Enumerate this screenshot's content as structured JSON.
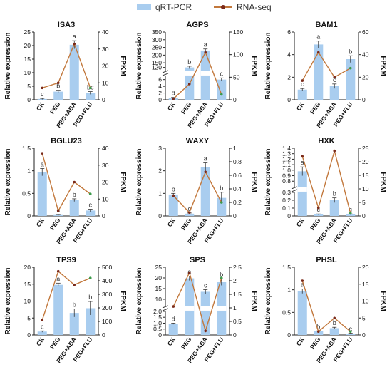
{
  "legend": {
    "bar_label": "qRT-PCR",
    "line_label": "RNA-seq"
  },
  "colors": {
    "bar": "#a9cdef",
    "line": "#c2783c",
    "point": "#7a2a1a",
    "flu_point": "#3c9a4a",
    "letter": "#333333"
  },
  "chart_data": [
    {
      "type": "bar",
      "title": "ISA3",
      "categories": [
        "CK",
        "PEG",
        "PEG+ABA",
        "PEG+FLU"
      ],
      "ylabel": "Relative expression",
      "y2label": "FPKM",
      "yticks": [
        0,
        5,
        10,
        15,
        20,
        25
      ],
      "ylim": [
        0,
        25
      ],
      "y2ticks": [
        0,
        10,
        20,
        30,
        40
      ],
      "y2lim": [
        0,
        40
      ],
      "values": [
        0.3,
        3.0,
        20.3,
        2.5
      ],
      "errors": [
        0.2,
        0.5,
        1.5,
        0.5
      ],
      "letters": [
        "c",
        "b",
        "a",
        "bc"
      ],
      "line_values": [
        7,
        10,
        33,
        7
      ]
    },
    {
      "type": "bar",
      "title": "AGPS",
      "categories": [
        "CK",
        "PEG",
        "PEG+ABA",
        "PEG+FLU"
      ],
      "ylabel": "Relative expression",
      "y2label": "FPKM",
      "yticks": [
        "0",
        "2",
        "4",
        "6",
        "120",
        "150",
        "200",
        "250",
        "300",
        "350"
      ],
      "ytick_values": [
        0,
        2,
        4,
        6,
        120,
        150,
        200,
        250,
        300,
        350
      ],
      "y_segments": [
        {
          "from": 0,
          "to": 7
        },
        {
          "from": 100,
          "to": 350
        }
      ],
      "y2ticks": [
        0,
        50,
        100,
        150
      ],
      "y2lim": [
        0,
        150
      ],
      "values": [
        0.5,
        120,
        230,
        6
      ],
      "errors": [
        0.2,
        8,
        10,
        0.5
      ],
      "letters": [
        "d",
        "b",
        "a",
        "c"
      ],
      "line_values": [
        2,
        35,
        105,
        12
      ]
    },
    {
      "type": "bar",
      "title": "BAM1",
      "categories": [
        "CK",
        "PEG",
        "PEG+ABA",
        "PEG+FLU"
      ],
      "ylabel": "Relative expression",
      "y2label": "FPKM",
      "yticks": [
        0,
        2,
        4,
        6
      ],
      "ylim": [
        0,
        6
      ],
      "y2ticks": [
        0,
        20,
        40,
        60
      ],
      "y2lim": [
        0,
        60
      ],
      "values": [
        0.9,
        4.9,
        1.2,
        3.6
      ],
      "errors": [
        0.1,
        0.3,
        0.2,
        0.3
      ],
      "letters": [
        "c",
        "a",
        "c",
        "b"
      ],
      "line_values": [
        17,
        42,
        20,
        28
      ]
    },
    {
      "type": "bar",
      "title": "BGLU23",
      "categories": [
        "CK",
        "PEG",
        "PEG+ABA",
        "PEG+FLU"
      ],
      "ylabel": "Relative expression",
      "y2label": "FPKM",
      "yticks": [
        0,
        0.5,
        1.0,
        1.5
      ],
      "ylim": [
        0,
        1.5
      ],
      "y2ticks": [
        0,
        10,
        20,
        30,
        40
      ],
      "y2lim": [
        0,
        40
      ],
      "values": [
        0.97,
        0.02,
        0.35,
        0.12
      ],
      "errors": [
        0.08,
        0.01,
        0.03,
        0.03
      ],
      "letters": [
        "a",
        "c",
        "b",
        "c"
      ],
      "line_values": [
        37,
        3,
        20,
        13
      ]
    },
    {
      "type": "bar",
      "title": "WAXY",
      "categories": [
        "CK",
        "PEG",
        "PEG+ABA",
        "PEG+FLU"
      ],
      "ylabel": "Relative expression",
      "y2label": "FPKM",
      "yticks": [
        0,
        1,
        2,
        3
      ],
      "ylim": [
        0,
        3
      ],
      "y2ticks": [
        0,
        0.2,
        0.4,
        0.6,
        0.8,
        1.0
      ],
      "y2lim": [
        0,
        1.0
      ],
      "values": [
        0.95,
        0.1,
        2.15,
        0.8
      ],
      "errors": [
        0.05,
        0.03,
        0.2,
        0.25
      ],
      "letters": [
        "b",
        "c",
        "a",
        "b"
      ],
      "line_values": [
        0.3,
        0.05,
        0.65,
        0.2
      ]
    },
    {
      "type": "bar",
      "title": "HXK",
      "categories": [
        "CK",
        "PEG",
        "PEG+ABA",
        "PEG+FLU"
      ],
      "ylabel": "Relative expression",
      "y2label": "FPKM",
      "yticks": [
        "0",
        "0.1",
        "0.2",
        "0.3",
        "0.8",
        "0.9",
        "1.0",
        "1.1",
        "1.2",
        "1.3",
        "1.4"
      ],
      "ytick_values": [
        0,
        0.1,
        0.2,
        0.3,
        0.8,
        0.9,
        1.0,
        1.1,
        1.2,
        1.3,
        1.4
      ],
      "y_segments": [
        {
          "from": 0,
          "to": 0.3
        },
        {
          "from": 0.7,
          "to": 1.4
        }
      ],
      "y2ticks": [
        0,
        5,
        10,
        15,
        20,
        25
      ],
      "y2lim": [
        0,
        25
      ],
      "values": [
        0.98,
        0.02,
        0.2,
        0.02
      ],
      "errors": [
        0.08,
        0.005,
        0.03,
        0.005
      ],
      "letters": [
        "a",
        "c",
        "b",
        "c"
      ],
      "line_values": [
        22,
        3,
        24,
        1
      ]
    },
    {
      "type": "bar",
      "title": "TPS9",
      "categories": [
        "CK",
        "PEG",
        "PEG+ABA",
        "PEG+FLU"
      ],
      "ylabel": "Relative expression",
      "y2label": "FPKM",
      "yticks": [
        0,
        5,
        10,
        15,
        20
      ],
      "ylim": [
        0,
        20
      ],
      "y2ticks": [
        0,
        100,
        200,
        300,
        400,
        500
      ],
      "y2lim": [
        0,
        500
      ],
      "values": [
        1.0,
        14.8,
        6.5,
        7.9
      ],
      "errors": [
        0.2,
        0.5,
        1.2,
        2.0
      ],
      "letters": [
        "c",
        "a",
        "b",
        "b"
      ],
      "line_values": [
        110,
        470,
        370,
        420
      ]
    },
    {
      "type": "bar",
      "title": "SPS",
      "categories": [
        "CK",
        "PEG",
        "PEG+ABA",
        "PEG+FLU"
      ],
      "ylabel": "Relative expression",
      "y2label": "FPKM",
      "yticks": [
        "0",
        "0.5",
        "1.0",
        "1.5",
        "2.0",
        "10",
        "15",
        "20",
        "25"
      ],
      "ytick_values": [
        0,
        0.5,
        1.0,
        1.5,
        2.0,
        10,
        15,
        20,
        25
      ],
      "y_segments": [
        {
          "from": 0,
          "to": 2.0
        },
        {
          "from": 7,
          "to": 25
        }
      ],
      "y2ticks": [
        0,
        0.5,
        1.0,
        1.5,
        2.0,
        2.5
      ],
      "y2lim": [
        0,
        2.5
      ],
      "values": [
        0.95,
        19.8,
        13.5,
        18.0
      ],
      "errors": [
        0.05,
        1.0,
        1.0,
        1.5
      ],
      "letters": [
        "d",
        "a",
        "c",
        "b"
      ],
      "line_values": [
        1.05,
        2.3,
        0.15,
        2.1
      ]
    },
    {
      "type": "bar",
      "title": "PHSL",
      "categories": [
        "CK",
        "PEG",
        "PEG+ABA",
        "PEG+FLU"
      ],
      "ylabel": "Relative expression",
      "y2label": "FPKM",
      "yticks": [
        0,
        0.5,
        1.0,
        1.5
      ],
      "ylim": [
        0,
        1.5
      ],
      "y2ticks": [
        0,
        5,
        10,
        15,
        20
      ],
      "y2lim": [
        0,
        20
      ],
      "values": [
        0.97,
        0.08,
        0.15,
        0.03
      ],
      "errors": [
        0.05,
        0.01,
        0.02,
        0.01
      ],
      "letters": [
        "a",
        "b",
        "b",
        "c"
      ],
      "line_values": [
        16,
        1,
        5,
        1
      ]
    }
  ]
}
